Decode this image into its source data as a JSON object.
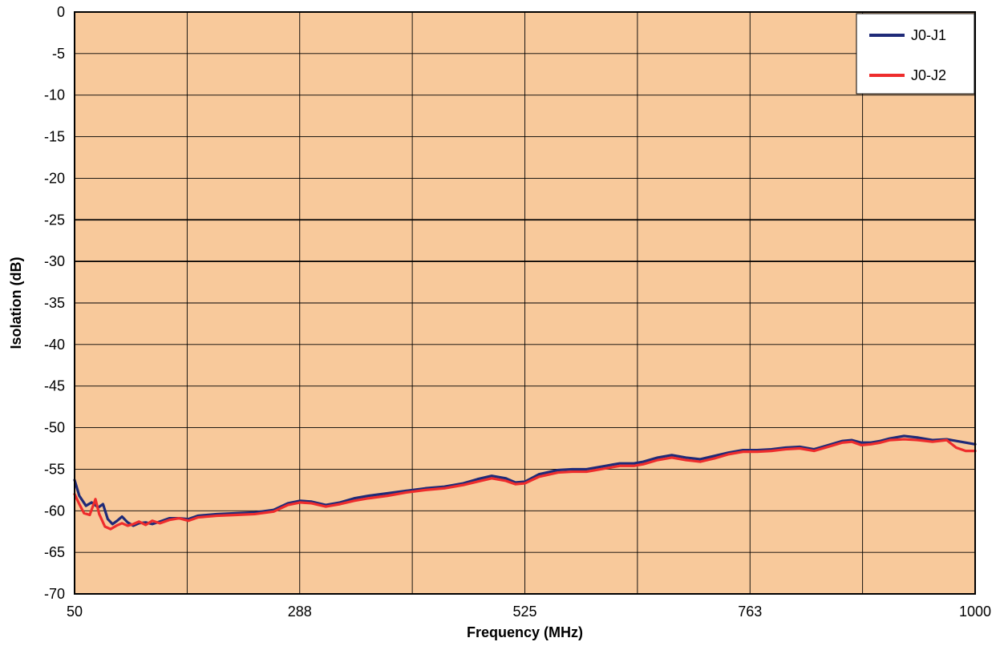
{
  "chart_data": {
    "type": "line",
    "title": "",
    "xlabel": "Frequency (MHz)",
    "ylabel": "Isolation (dB)",
    "xlim": [
      50,
      1000
    ],
    "ylim": [
      -70,
      0
    ],
    "x_tick_labels": [
      "50",
      "288",
      "525",
      "763",
      "1000"
    ],
    "y_ticks": [
      0,
      -5,
      -10,
      -15,
      -20,
      -25,
      -30,
      -35,
      -40,
      -45,
      -50,
      -55,
      -60,
      -65,
      -70
    ],
    "y_tick_labels": [
      "0",
      "-5",
      "-10",
      "-15",
      "-20",
      "-25",
      "-30",
      "-35",
      "-40",
      "-45",
      "-50",
      "-55",
      "-60",
      "-65",
      "-70"
    ],
    "grid": true,
    "legend_position": "top-right",
    "plot_background": "#F8C99B",
    "series": [
      {
        "name": "J0-J1",
        "color": "#1F2A78",
        "points": [
          [
            50,
            -56.3
          ],
          [
            55,
            -58.2
          ],
          [
            62,
            -59.4
          ],
          [
            68,
            -59.0
          ],
          [
            75,
            -59.6
          ],
          [
            80,
            -59.2
          ],
          [
            85,
            -61.0
          ],
          [
            90,
            -61.6
          ],
          [
            95,
            -61.2
          ],
          [
            100,
            -60.7
          ],
          [
            106,
            -61.4
          ],
          [
            112,
            -61.8
          ],
          [
            118,
            -61.5
          ],
          [
            125,
            -61.4
          ],
          [
            132,
            -61.6
          ],
          [
            140,
            -61.3
          ],
          [
            150,
            -60.9
          ],
          [
            160,
            -60.9
          ],
          [
            170,
            -61.0
          ],
          [
            180,
            -60.6
          ],
          [
            200,
            -60.4
          ],
          [
            220,
            -60.3
          ],
          [
            240,
            -60.2
          ],
          [
            260,
            -59.9
          ],
          [
            275,
            -59.1
          ],
          [
            288,
            -58.8
          ],
          [
            300,
            -58.9
          ],
          [
            315,
            -59.3
          ],
          [
            330,
            -59.0
          ],
          [
            345,
            -58.5
          ],
          [
            360,
            -58.2
          ],
          [
            380,
            -57.9
          ],
          [
            400,
            -57.6
          ],
          [
            420,
            -57.3
          ],
          [
            440,
            -57.1
          ],
          [
            460,
            -56.7
          ],
          [
            475,
            -56.2
          ],
          [
            490,
            -55.8
          ],
          [
            505,
            -56.1
          ],
          [
            515,
            -56.6
          ],
          [
            525,
            -56.5
          ],
          [
            540,
            -55.6
          ],
          [
            560,
            -55.1
          ],
          [
            575,
            -55.0
          ],
          [
            590,
            -55.0
          ],
          [
            610,
            -54.6
          ],
          [
            625,
            -54.3
          ],
          [
            640,
            -54.3
          ],
          [
            650,
            -54.1
          ],
          [
            665,
            -53.6
          ],
          [
            680,
            -53.3
          ],
          [
            695,
            -53.6
          ],
          [
            710,
            -53.8
          ],
          [
            725,
            -53.4
          ],
          [
            740,
            -53.0
          ],
          [
            755,
            -52.7
          ],
          [
            770,
            -52.7
          ],
          [
            785,
            -52.6
          ],
          [
            800,
            -52.4
          ],
          [
            815,
            -52.3
          ],
          [
            830,
            -52.6
          ],
          [
            845,
            -52.1
          ],
          [
            860,
            -51.6
          ],
          [
            870,
            -51.5
          ],
          [
            880,
            -51.8
          ],
          [
            890,
            -51.8
          ],
          [
            900,
            -51.6
          ],
          [
            910,
            -51.3
          ],
          [
            925,
            -51.0
          ],
          [
            940,
            -51.2
          ],
          [
            955,
            -51.5
          ],
          [
            970,
            -51.4
          ],
          [
            985,
            -51.7
          ],
          [
            1000,
            -52.0
          ]
        ]
      },
      {
        "name": "J0-J2",
        "color": "#EE2C2C",
        "points": [
          [
            50,
            -58.0
          ],
          [
            55,
            -59.2
          ],
          [
            60,
            -60.3
          ],
          [
            66,
            -60.5
          ],
          [
            72,
            -58.6
          ],
          [
            76,
            -60.4
          ],
          [
            82,
            -61.9
          ],
          [
            88,
            -62.2
          ],
          [
            94,
            -61.8
          ],
          [
            100,
            -61.5
          ],
          [
            106,
            -61.8
          ],
          [
            112,
            -61.6
          ],
          [
            118,
            -61.3
          ],
          [
            125,
            -61.7
          ],
          [
            132,
            -61.2
          ],
          [
            140,
            -61.5
          ],
          [
            150,
            -61.1
          ],
          [
            160,
            -60.9
          ],
          [
            170,
            -61.2
          ],
          [
            180,
            -60.8
          ],
          [
            200,
            -60.6
          ],
          [
            220,
            -60.5
          ],
          [
            240,
            -60.4
          ],
          [
            260,
            -60.1
          ],
          [
            275,
            -59.3
          ],
          [
            288,
            -59.0
          ],
          [
            300,
            -59.1
          ],
          [
            315,
            -59.5
          ],
          [
            330,
            -59.2
          ],
          [
            345,
            -58.8
          ],
          [
            360,
            -58.5
          ],
          [
            380,
            -58.2
          ],
          [
            400,
            -57.8
          ],
          [
            420,
            -57.5
          ],
          [
            440,
            -57.3
          ],
          [
            460,
            -56.9
          ],
          [
            475,
            -56.5
          ],
          [
            490,
            -56.1
          ],
          [
            505,
            -56.4
          ],
          [
            515,
            -56.8
          ],
          [
            525,
            -56.7
          ],
          [
            540,
            -55.9
          ],
          [
            560,
            -55.4
          ],
          [
            575,
            -55.3
          ],
          [
            590,
            -55.3
          ],
          [
            610,
            -54.9
          ],
          [
            625,
            -54.6
          ],
          [
            640,
            -54.6
          ],
          [
            650,
            -54.4
          ],
          [
            665,
            -53.9
          ],
          [
            680,
            -53.6
          ],
          [
            695,
            -53.9
          ],
          [
            710,
            -54.1
          ],
          [
            725,
            -53.7
          ],
          [
            740,
            -53.2
          ],
          [
            755,
            -52.9
          ],
          [
            770,
            -52.9
          ],
          [
            785,
            -52.8
          ],
          [
            800,
            -52.6
          ],
          [
            815,
            -52.5
          ],
          [
            830,
            -52.8
          ],
          [
            845,
            -52.3
          ],
          [
            860,
            -51.8
          ],
          [
            870,
            -51.7
          ],
          [
            880,
            -52.1
          ],
          [
            890,
            -52.0
          ],
          [
            900,
            -51.8
          ],
          [
            910,
            -51.5
          ],
          [
            925,
            -51.4
          ],
          [
            940,
            -51.5
          ],
          [
            955,
            -51.7
          ],
          [
            970,
            -51.5
          ],
          [
            980,
            -52.4
          ],
          [
            990,
            -52.8
          ],
          [
            1000,
            -52.8
          ]
        ]
      }
    ]
  }
}
